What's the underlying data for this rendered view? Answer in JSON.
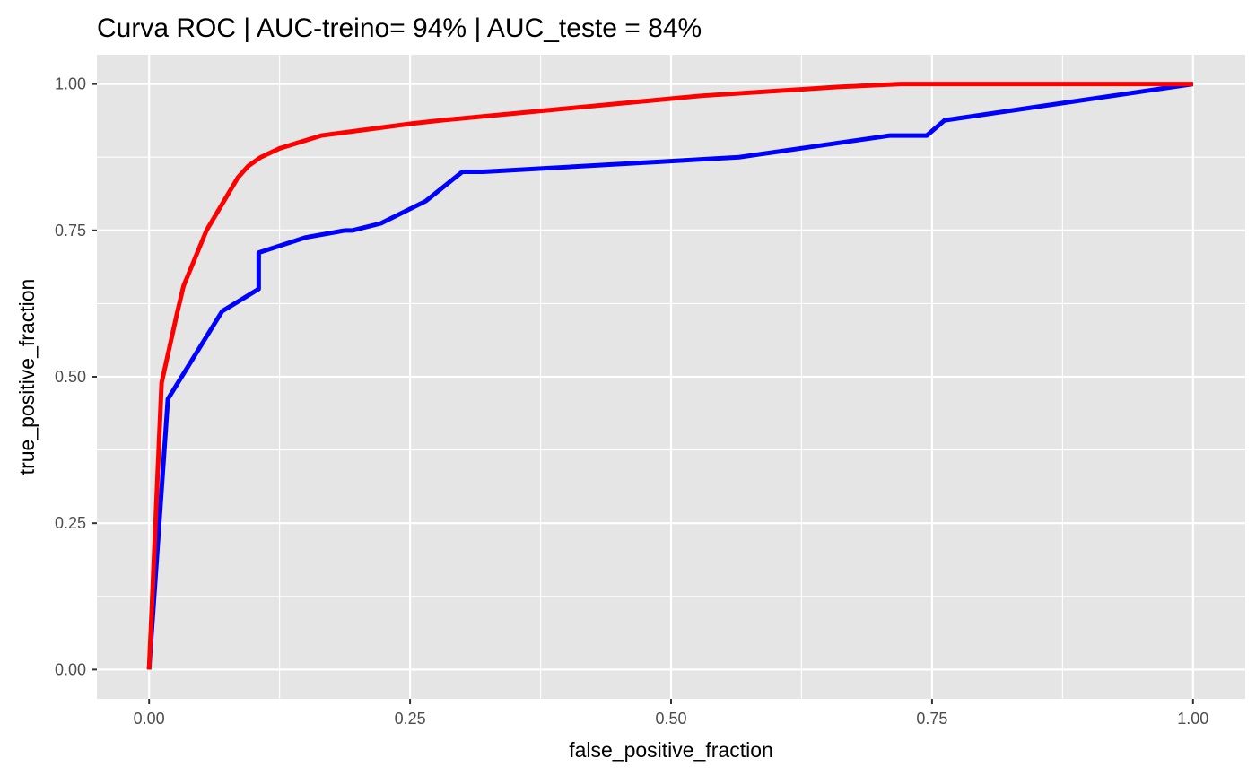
{
  "chart_data": {
    "type": "line",
    "title": "Curva ROC | AUC-treino= 94% | AUC_teste =  84%",
    "xlabel": "false_positive_fraction",
    "ylabel": "true_positive_fraction",
    "xlim": [
      -0.05,
      1.05
    ],
    "ylim": [
      -0.05,
      1.05
    ],
    "grid": true,
    "legend": "none",
    "background_color": "#e5e5e5",
    "grid_color": "#ffffff",
    "x_ticks": [
      0,
      0.25,
      0.5,
      0.75,
      1
    ],
    "x_tick_labels": [
      "0.00",
      "0.25",
      "0.50",
      "0.75",
      "1.00"
    ],
    "y_ticks": [
      0,
      0.25,
      0.5,
      0.75,
      1
    ],
    "y_tick_labels": [
      "0.00",
      "0.25",
      "0.50",
      "0.75",
      "1.00"
    ],
    "series": [
      {
        "color": "#ff0000",
        "x": [
          0,
          0.012,
          0.027,
          0.033,
          0.055,
          0.085,
          0.095,
          0.107,
          0.125,
          0.165,
          0.25,
          0.28,
          0.53,
          0.66,
          0.72,
          1.0
        ],
        "y": [
          0,
          0.49,
          0.61,
          0.655,
          0.75,
          0.84,
          0.86,
          0.875,
          0.89,
          0.912,
          0.932,
          0.938,
          0.98,
          0.995,
          1.0,
          1.0
        ]
      },
      {
        "color": "#0000ff",
        "x": [
          0,
          0.018,
          0.07,
          0.105,
          0.105,
          0.15,
          0.188,
          0.195,
          0.222,
          0.265,
          0.3,
          0.32,
          0.565,
          0.71,
          0.745,
          0.762,
          1.0
        ],
        "y": [
          0,
          0.462,
          0.612,
          0.65,
          0.712,
          0.738,
          0.75,
          0.75,
          0.762,
          0.8,
          0.85,
          0.85,
          0.875,
          0.912,
          0.912,
          0.938,
          1.0
        ]
      }
    ]
  }
}
